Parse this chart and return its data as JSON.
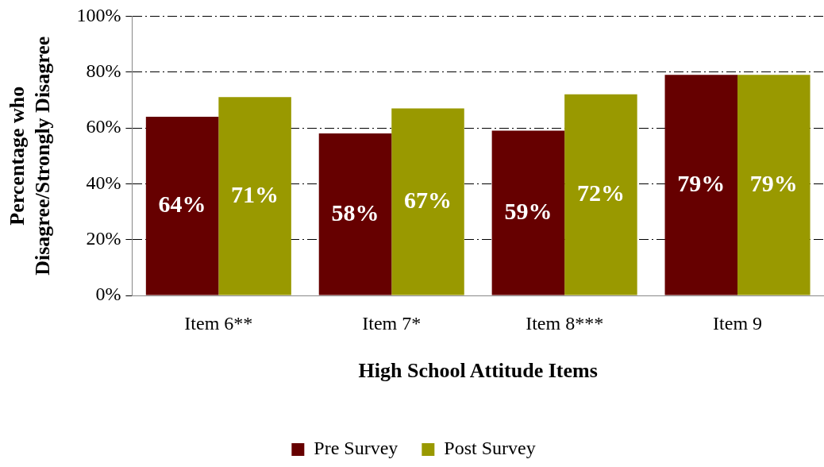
{
  "chart_data": {
    "type": "bar",
    "xlabel": "High School Attitude Items",
    "ylabel": "Percentage who Disagree/Strongly Disagree",
    "categories": [
      "Item 6**",
      "Item 7*",
      "Item 8***",
      "Item 9"
    ],
    "series": [
      {
        "name": "Pre Survey",
        "color": "#660000",
        "values": [
          64,
          58,
          59,
          79
        ],
        "value_labels": [
          "64%",
          "58%",
          "59%",
          "79%"
        ]
      },
      {
        "name": "Post Survey",
        "color": "#999900",
        "values": [
          71,
          67,
          72,
          79
        ],
        "value_labels": [
          "71%",
          "67%",
          "72%",
          "79%"
        ]
      }
    ],
    "ylim": [
      0,
      100
    ],
    "yticks": [
      {
        "value": 0,
        "label": "0%"
      },
      {
        "value": 20,
        "label": "20%"
      },
      {
        "value": 40,
        "label": "40%"
      },
      {
        "value": 60,
        "label": "60%"
      },
      {
        "value": 80,
        "label": "80%"
      },
      {
        "value": 100,
        "label": "100%"
      }
    ],
    "grid": "y",
    "legend": "bottom"
  }
}
